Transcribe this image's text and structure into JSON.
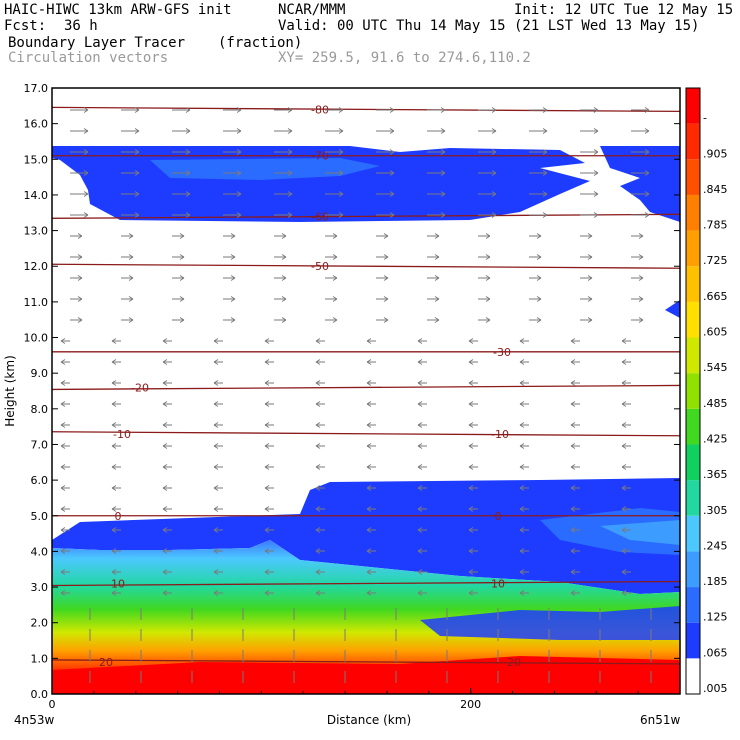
{
  "header": {
    "model": "HAIC-HIWC 13km ARW-GFS init",
    "org": "NCAR/MMM",
    "init": "Init: 12 UTC Tue 12 May 15",
    "fcst_label": "Fcst:",
    "fcst_value": "36 h",
    "valid": "Valid: 00 UTC Thu 14 May 15 (21 LST Wed 13 May 15)",
    "field_name": "Boundary Layer Tracer",
    "field_units": "(fraction)",
    "vectors_label": "Circulation vectors",
    "xy_label": "XY= 259.5, 91.6 to 274.6,110.2"
  },
  "colors": {
    "temp_contour": "#8b1a1a",
    "axis": "#000000",
    "vector": "#7a7a7a"
  },
  "chart_data": {
    "type": "heatmap",
    "ylabel": "Height (km)",
    "xlabel": "Distance (km)",
    "ylim": [
      0,
      17
    ],
    "xlim": [
      0,
      300
    ],
    "y_ticks": [
      "0.0",
      "1.0",
      "2.0",
      "3.0",
      "4.0",
      "5.0",
      "6.0",
      "7.0",
      "8.0",
      "9.0",
      "10.0",
      "11.0",
      "12.0",
      "13.0",
      "14.0",
      "15.0",
      "16.0",
      "17.0"
    ],
    "x_ticks": [
      {
        "value": 0,
        "label": "0"
      },
      {
        "value": 200,
        "label": "200"
      }
    ],
    "x_endpoints": {
      "left": "4n53w",
      "right": "6n51w"
    },
    "colorbar_labels": [
      ".005",
      ".065",
      ".125",
      ".185",
      ".245",
      ".305",
      ".365",
      ".425",
      ".485",
      ".545",
      ".605",
      ".665",
      ".725",
      ".785",
      ".845",
      ".905",
      "-"
    ],
    "colorbar_colors": [
      "#ffffff",
      "#1e3cff",
      "#2a6cff",
      "#3c9cff",
      "#4cc8ff",
      "#22d8a0",
      "#10d060",
      "#40d820",
      "#90e000",
      "#d0e800",
      "#ffe000",
      "#ffc000",
      "#ffa000",
      "#ff8000",
      "#ff5000",
      "#ff2a00",
      "#ff0000"
    ],
    "temperature_contours": [
      {
        "label": "-80",
        "height": 16.4
      },
      {
        "label": "-70",
        "height": 15.1
      },
      {
        "label": "-60",
        "height": 13.4
      },
      {
        "label": "-50",
        "height": 12.0
      },
      {
        "label": "-30",
        "height": 9.6
      },
      {
        "label": "-20",
        "height": 8.6
      },
      {
        "label": "-10",
        "height": 7.3
      },
      {
        "label": "0",
        "height": 5.0
      },
      {
        "label": "10",
        "height": 3.1
      },
      {
        "label": "20",
        "height": 0.9
      }
    ],
    "temperature_contour_labels_shown": [
      "-80",
      "-70",
      "-60",
      "-50",
      "-30",
      "-20",
      "-10",
      "0",
      "10",
      "20"
    ]
  }
}
